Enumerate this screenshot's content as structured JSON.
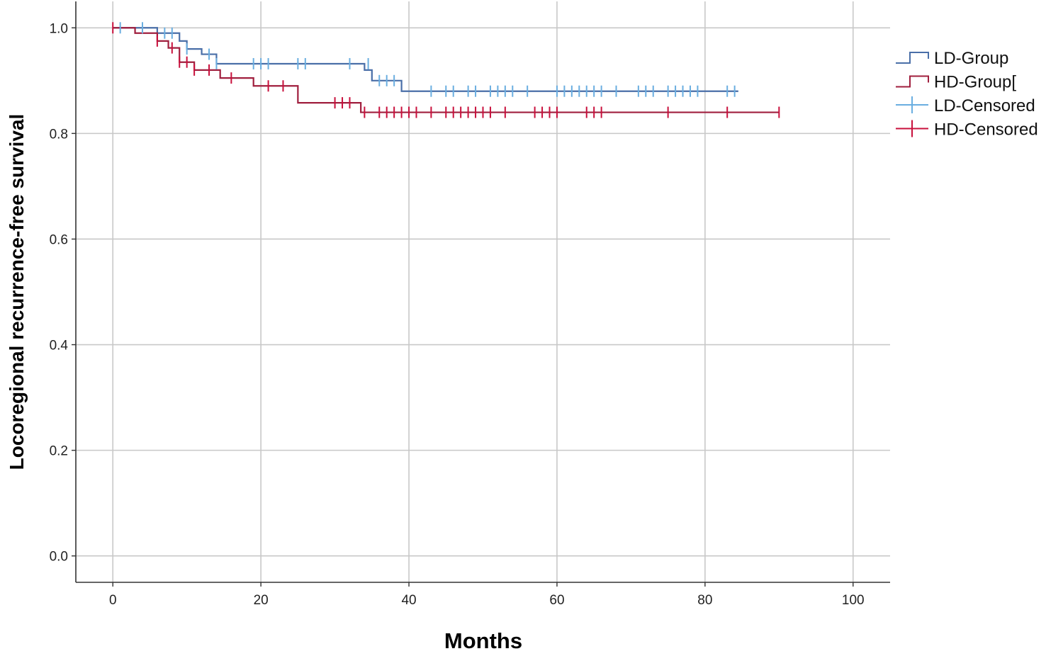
{
  "chart_data": {
    "type": "line",
    "title": "",
    "xlabel": "Months",
    "ylabel": "Locoregional recurrence-free survival",
    "xlim": [
      -5,
      105
    ],
    "ylim": [
      -0.05,
      1.05
    ],
    "xticks": [
      0,
      20,
      40,
      60,
      80,
      100
    ],
    "yticks": [
      0.0,
      0.2,
      0.4,
      0.6,
      0.8,
      1.0
    ],
    "x_tick_labels": [
      "0",
      "20",
      "40",
      "60",
      "80",
      "100"
    ],
    "y_tick_labels": [
      "0.0",
      "0.2",
      "0.4",
      "0.6",
      "0.8",
      "1.0"
    ],
    "grid": true,
    "legend_position": "right",
    "series": [
      {
        "name": "LD-Group",
        "color": "#4a6fa8",
        "censor_color": "#6aaee0",
        "censor_name": "LD-Censored",
        "steps": [
          [
            0,
            1.0
          ],
          [
            6,
            0.99
          ],
          [
            9,
            0.975
          ],
          [
            10,
            0.96
          ],
          [
            12,
            0.95
          ],
          [
            14,
            0.932
          ],
          [
            34,
            0.92
          ],
          [
            35,
            0.9
          ],
          [
            39,
            0.88
          ],
          [
            84.5,
            0.88
          ]
        ],
        "censored": [
          [
            1,
            1.0
          ],
          [
            4,
            1.0
          ],
          [
            7,
            0.99
          ],
          [
            8,
            0.99
          ],
          [
            10,
            0.96
          ],
          [
            13,
            0.95
          ],
          [
            14,
            0.932
          ],
          [
            19,
            0.932
          ],
          [
            20,
            0.932
          ],
          [
            21,
            0.932
          ],
          [
            25,
            0.932
          ],
          [
            26,
            0.932
          ],
          [
            32,
            0.932
          ],
          [
            34.5,
            0.932
          ],
          [
            36,
            0.9
          ],
          [
            37,
            0.9
          ],
          [
            38,
            0.9
          ],
          [
            43,
            0.88
          ],
          [
            45,
            0.88
          ],
          [
            46,
            0.88
          ],
          [
            48,
            0.88
          ],
          [
            49,
            0.88
          ],
          [
            51,
            0.88
          ],
          [
            52,
            0.88
          ],
          [
            53,
            0.88
          ],
          [
            54,
            0.88
          ],
          [
            56,
            0.88
          ],
          [
            60,
            0.88
          ],
          [
            61,
            0.88
          ],
          [
            62,
            0.88
          ],
          [
            63,
            0.88
          ],
          [
            64,
            0.88
          ],
          [
            65,
            0.88
          ],
          [
            66,
            0.88
          ],
          [
            68,
            0.88
          ],
          [
            71,
            0.88
          ],
          [
            72,
            0.88
          ],
          [
            73,
            0.88
          ],
          [
            75,
            0.88
          ],
          [
            76,
            0.88
          ],
          [
            77,
            0.88
          ],
          [
            78,
            0.88
          ],
          [
            79,
            0.88
          ],
          [
            83,
            0.88
          ],
          [
            84,
            0.88
          ]
        ]
      },
      {
        "name": "HD-Group[",
        "color": "#a01f3e",
        "censor_color": "#c8103c",
        "censor_name": "HD-Censored",
        "steps": [
          [
            0,
            1.0
          ],
          [
            3,
            0.99
          ],
          [
            6,
            0.975
          ],
          [
            7.5,
            0.962
          ],
          [
            9,
            0.935
          ],
          [
            11,
            0.92
          ],
          [
            14.5,
            0.905
          ],
          [
            19,
            0.89
          ],
          [
            25,
            0.858
          ],
          [
            33.5,
            0.84
          ],
          [
            90,
            0.84
          ]
        ],
        "censored": [
          [
            0,
            1.0
          ],
          [
            6,
            0.975
          ],
          [
            8,
            0.962
          ],
          [
            9,
            0.935
          ],
          [
            10,
            0.935
          ],
          [
            11,
            0.92
          ],
          [
            13,
            0.92
          ],
          [
            16,
            0.905
          ],
          [
            21,
            0.89
          ],
          [
            23,
            0.89
          ],
          [
            30,
            0.858
          ],
          [
            31,
            0.858
          ],
          [
            32,
            0.858
          ],
          [
            34,
            0.84
          ],
          [
            36,
            0.84
          ],
          [
            37,
            0.84
          ],
          [
            38,
            0.84
          ],
          [
            39,
            0.84
          ],
          [
            40,
            0.84
          ],
          [
            41,
            0.84
          ],
          [
            43,
            0.84
          ],
          [
            45,
            0.84
          ],
          [
            46,
            0.84
          ],
          [
            47,
            0.84
          ],
          [
            48,
            0.84
          ],
          [
            49,
            0.84
          ],
          [
            50,
            0.84
          ],
          [
            51,
            0.84
          ],
          [
            53,
            0.84
          ],
          [
            57,
            0.84
          ],
          [
            58,
            0.84
          ],
          [
            59,
            0.84
          ],
          [
            60,
            0.84
          ],
          [
            64,
            0.84
          ],
          [
            65,
            0.84
          ],
          [
            66,
            0.84
          ],
          [
            75,
            0.84
          ],
          [
            83,
            0.84
          ],
          [
            90,
            0.84
          ]
        ]
      }
    ]
  }
}
